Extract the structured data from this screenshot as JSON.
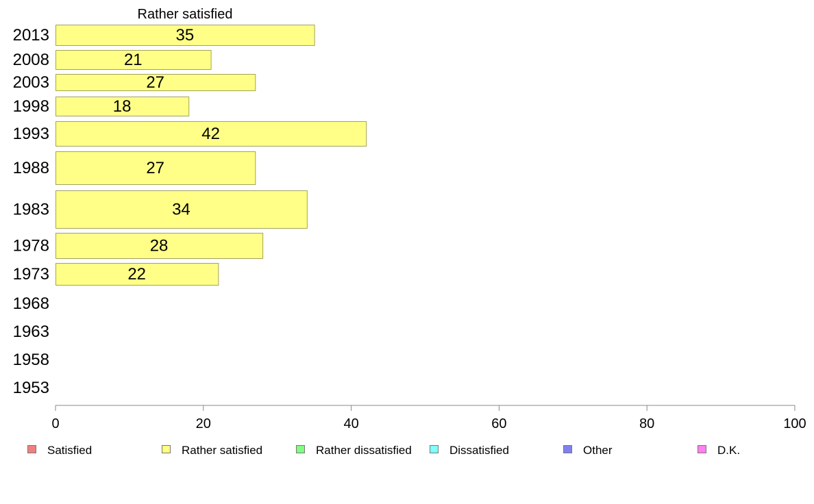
{
  "chart_data": {
    "type": "bar",
    "orientation": "horizontal",
    "title": "Rather satisfied",
    "categories": [
      "2013",
      "2008",
      "2003",
      "1998",
      "1993",
      "1988",
      "1983",
      "1978",
      "1973",
      "1968",
      "1963",
      "1958",
      "1953"
    ],
    "series": [
      {
        "name": "Rather satisfied",
        "values": [
          35,
          21,
          27,
          18,
          42,
          27,
          34,
          28,
          22,
          null,
          null,
          null,
          null
        ]
      }
    ],
    "xlim": [
      0,
      100
    ],
    "xticks": [
      "0",
      "20",
      "40",
      "60",
      "80",
      "100"
    ],
    "grid": false,
    "legend_placement": "bottom",
    "bar_color": "#ffff88"
  },
  "legend": [
    {
      "label": "Satisfied",
      "color": "#f08080"
    },
    {
      "label": "Rather satisfied",
      "color": "#ffff80"
    },
    {
      "label": "Rather dissatisfied",
      "color": "#80ff80"
    },
    {
      "label": "Dissatisfied",
      "color": "#80ffff"
    },
    {
      "label": "Other",
      "color": "#8080f0"
    },
    {
      "label": "D.K.",
      "color": "#ff80f0"
    }
  ]
}
